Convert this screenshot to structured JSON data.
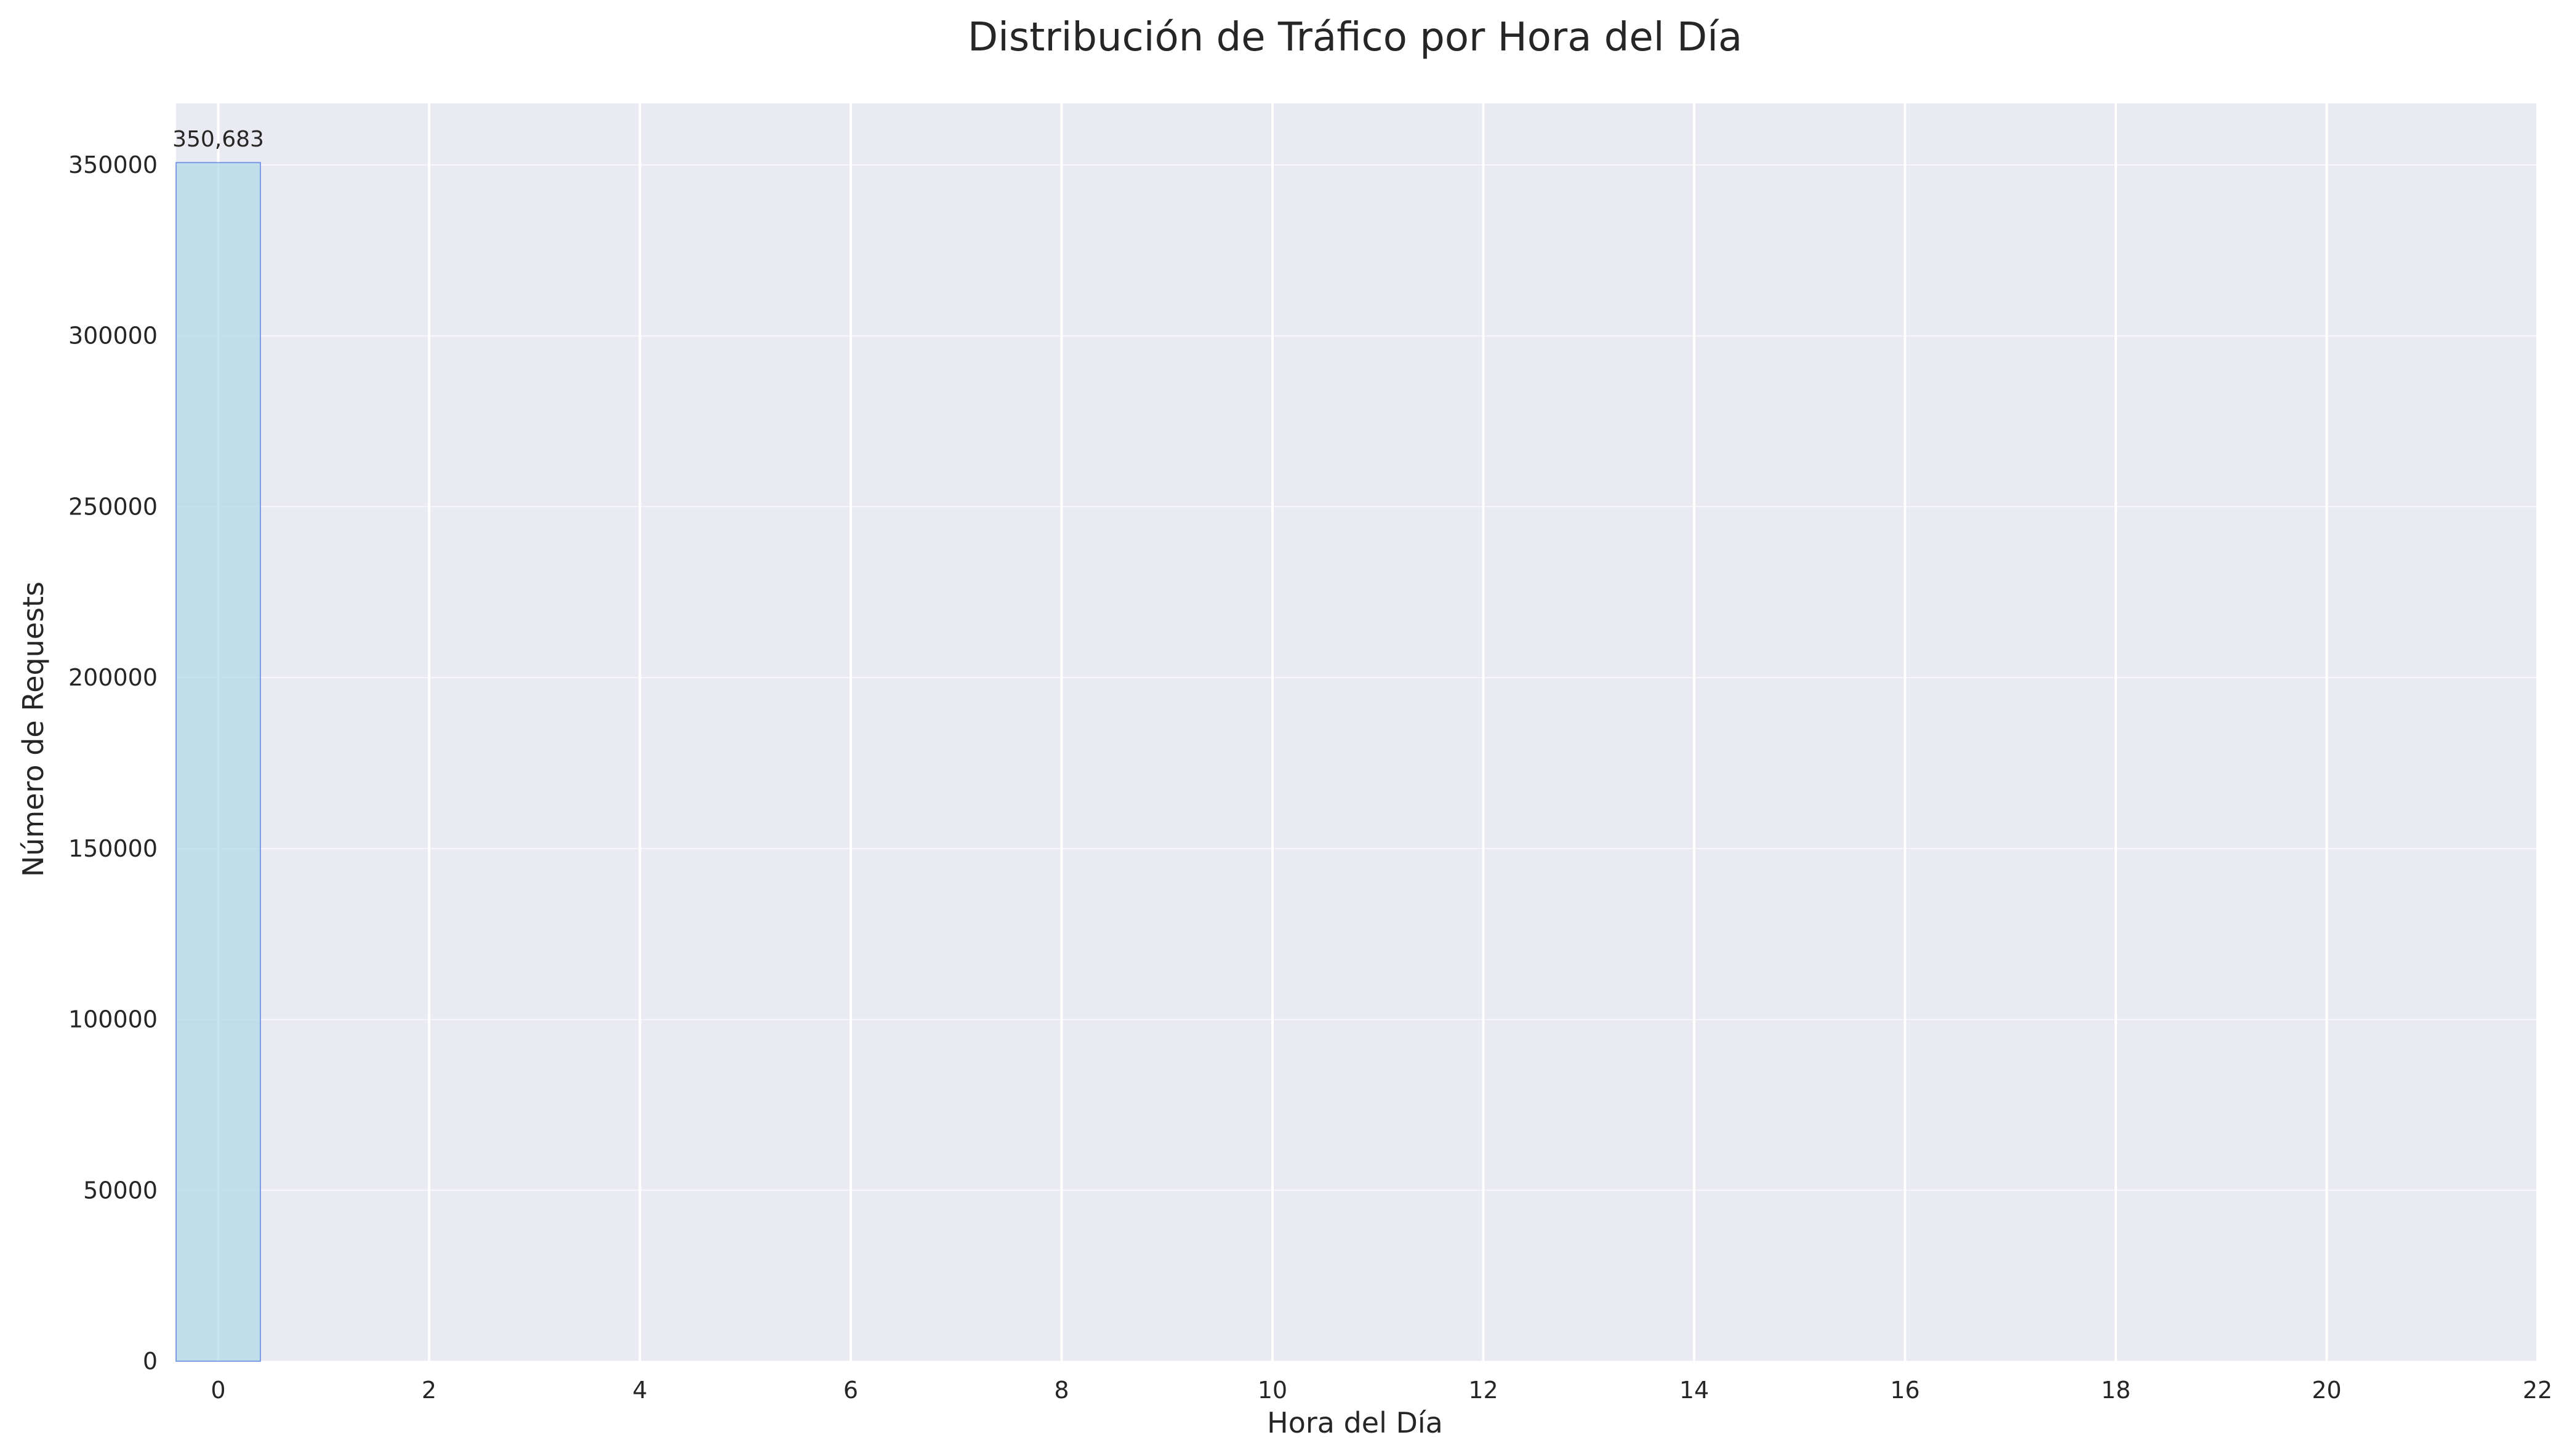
{
  "chart_data": {
    "type": "bar",
    "title": "Distribución de Tráfico por Hora del Día",
    "xlabel": "Hora del Día",
    "ylabel": "Número de Requests",
    "xlim": [
      -0.4,
      22
    ],
    "ylim": [
      0,
      368000
    ],
    "xticks": [
      0,
      2,
      4,
      6,
      8,
      10,
      12,
      14,
      16,
      18,
      20,
      22
    ],
    "yticks": [
      0,
      50000,
      100000,
      150000,
      200000,
      250000,
      300000,
      350000
    ],
    "grid": true,
    "bar_width": 0.8,
    "bars": [
      {
        "x": 0,
        "value": 350683,
        "label": "350,683"
      }
    ],
    "colors": {
      "background": "#eaeaf2",
      "grid": "#ffffff",
      "bar_fill": "#add8e6",
      "bar_edge": "#4169e1"
    }
  }
}
